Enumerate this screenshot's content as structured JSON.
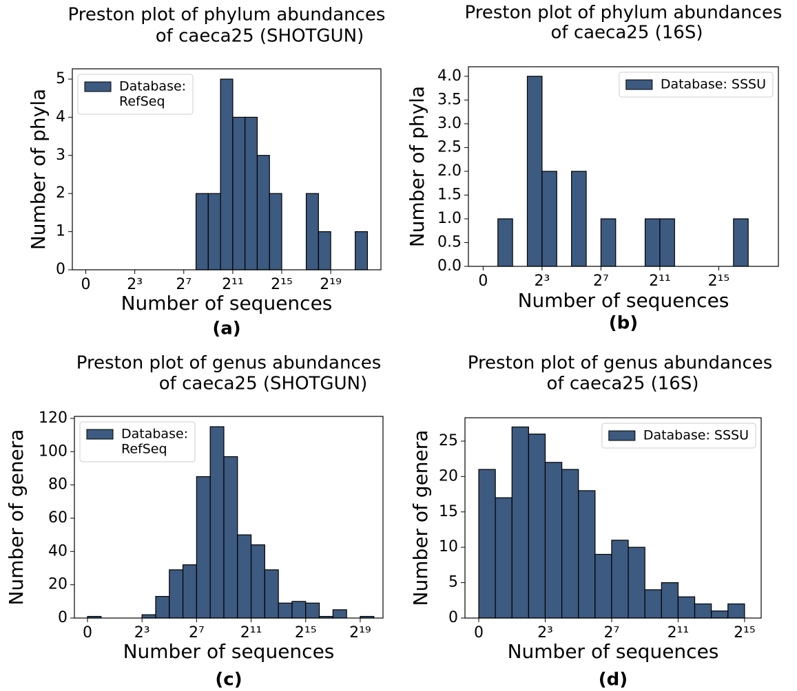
{
  "chart_data": [
    {
      "type": "histogram",
      "title": [
        "Preston plot of phylum abundances",
        "of caeca25 (SHOTGUN)"
      ],
      "caption": "(a)",
      "xlabel": "Number of sequences",
      "ylabel": "Number of phyla",
      "bins": [
        -1,
        0,
        1,
        2,
        3,
        4,
        5,
        6,
        7,
        8,
        9,
        10,
        11,
        12,
        13,
        14,
        15,
        16,
        17,
        18,
        19,
        20,
        21,
        22
      ],
      "series": [
        {
          "name": [
            "Database:",
            "RefSeq"
          ],
          "color": "#3d5a80",
          "values": [
            0,
            0,
            0,
            0,
            0,
            0,
            0,
            0,
            0,
            2,
            2,
            5,
            4,
            4,
            3,
            2,
            0,
            0,
            2,
            1,
            0,
            0,
            1
          ]
        }
      ],
      "xlim": [
        -2.1,
        23.1
      ],
      "ylim": [
        0,
        5.27
      ],
      "xticks": [
        {
          "value": -1,
          "label": "0"
        },
        {
          "value": 3,
          "label": "2³"
        },
        {
          "value": 7,
          "label": "2⁷"
        },
        {
          "value": 11,
          "label": "2¹¹"
        },
        {
          "value": 15,
          "label": "2¹⁵"
        },
        {
          "value": 19,
          "label": "2¹⁹"
        }
      ],
      "yticks": [
        0,
        1,
        2,
        3,
        4,
        5
      ],
      "legend": "upper left"
    },
    {
      "type": "histogram",
      "title": [
        "Preston plot of phylum abundances",
        "of caeca25 (16S)"
      ],
      "caption": "(b)",
      "xlabel": "Number of sequences",
      "ylabel": "Number of phyla",
      "bins": [
        -1,
        0,
        1,
        2,
        3,
        4,
        5,
        6,
        7,
        8,
        9,
        10,
        11,
        12,
        13,
        14,
        15,
        16,
        17
      ],
      "series": [
        {
          "name": [
            "Database: SSSU"
          ],
          "color": "#3d5a80",
          "values": [
            0,
            1,
            0,
            4,
            2,
            0,
            2,
            0,
            1,
            0,
            0,
            1,
            1,
            0,
            0,
            0,
            0,
            1
          ]
        }
      ],
      "xlim": [
        -2,
        19.05
      ],
      "ylim": [
        0,
        4.2
      ],
      "xticks": [
        {
          "value": -1,
          "label": "0"
        },
        {
          "value": 3,
          "label": "2³"
        },
        {
          "value": 7,
          "label": "2⁷"
        },
        {
          "value": 11,
          "label": "2¹¹"
        },
        {
          "value": 15,
          "label": "2¹⁵"
        }
      ],
      "yticks": [
        {
          "value": 0,
          "label": "0.0"
        },
        {
          "value": 0.5,
          "label": "0.5"
        },
        {
          "value": 1,
          "label": "1.0"
        },
        {
          "value": 1.5,
          "label": "1.5"
        },
        {
          "value": 2,
          "label": "2.0"
        },
        {
          "value": 2.5,
          "label": "2.5"
        },
        {
          "value": 3,
          "label": "3.0"
        },
        {
          "value": 3.5,
          "label": "3.5"
        },
        {
          "value": 4,
          "label": "4.0"
        }
      ],
      "legend": "upper right"
    },
    {
      "type": "histogram",
      "title": [
        "Preston plot of genus abundances",
        "of caeca25  (SHOTGUN)"
      ],
      "caption": "(c)",
      "xlabel": "Number of sequences",
      "ylabel": "Number of genera",
      "bins": [
        -1,
        0,
        1,
        2,
        3,
        4,
        5,
        6,
        7,
        8,
        9,
        10,
        11,
        12,
        13,
        14,
        15,
        16,
        17,
        18,
        19,
        20
      ],
      "series": [
        {
          "name": [
            "Database:",
            "RefSeq"
          ],
          "color": "#3d5a80",
          "values": [
            1,
            0,
            0,
            0,
            2,
            13,
            29,
            32,
            85,
            115,
            97,
            50,
            44,
            29,
            9,
            10,
            9,
            1,
            5,
            0,
            1
          ]
        }
      ],
      "xlim": [
        -1.96,
        20.67
      ],
      "ylim": [
        0,
        121.2
      ],
      "xticks": [
        {
          "value": -1,
          "label": "0"
        },
        {
          "value": 3,
          "label": "2³"
        },
        {
          "value": 7,
          "label": "2⁷"
        },
        {
          "value": 11,
          "label": "2¹¹"
        },
        {
          "value": 15,
          "label": "2¹⁵"
        },
        {
          "value": 19,
          "label": "2¹⁹"
        }
      ],
      "yticks": [
        0,
        20,
        40,
        60,
        80,
        100,
        120
      ],
      "legend": "upper left"
    },
    {
      "type": "histogram",
      "title": [
        "Preston plot of genus abundances",
        "of caeca25 (16S)"
      ],
      "caption": "(d)",
      "xlabel": "Number of sequences",
      "ylabel": "Number of genera",
      "bins": [
        -1,
        0,
        1,
        2,
        3,
        4,
        5,
        6,
        7,
        8,
        9,
        10,
        11,
        12,
        13,
        14,
        15
      ],
      "series": [
        {
          "name": [
            "Database: SSSU"
          ],
          "color": "#3d5a80",
          "values": [
            21,
            17,
            27,
            26,
            22,
            21,
            18,
            9,
            11,
            10,
            4,
            5,
            3,
            2,
            1,
            2
          ]
        }
      ],
      "xlim": [
        -1.83,
        16.0
      ],
      "ylim": [
        0,
        28.3
      ],
      "xticks": [
        {
          "value": -1,
          "label": "0"
        },
        {
          "value": 3,
          "label": "2³"
        },
        {
          "value": 7,
          "label": "2⁷"
        },
        {
          "value": 11,
          "label": "2¹¹"
        },
        {
          "value": 15,
          "label": "2¹⁵"
        }
      ],
      "yticks": [
        0,
        5,
        10,
        15,
        20,
        25
      ],
      "legend": "upper right"
    }
  ]
}
